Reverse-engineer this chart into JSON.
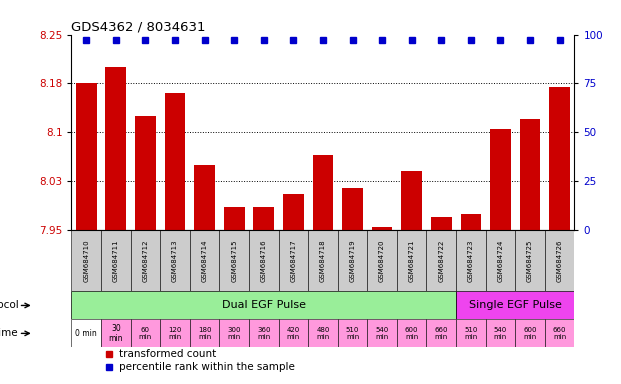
{
  "title": "GDS4362 / 8034631",
  "categories": [
    "GSM684710",
    "GSM684711",
    "GSM684712",
    "GSM684713",
    "GSM684714",
    "GSM684715",
    "GSM684716",
    "GSM684717",
    "GSM684718",
    "GSM684719",
    "GSM684720",
    "GSM684721",
    "GSM684722",
    "GSM684723",
    "GSM684724",
    "GSM684725",
    "GSM684726"
  ],
  "bar_values": [
    8.175,
    8.2,
    8.125,
    8.16,
    8.05,
    7.985,
    7.985,
    8.005,
    8.065,
    8.015,
    7.955,
    8.04,
    7.97,
    7.975,
    8.105,
    8.12,
    8.17
  ],
  "percentile_values": [
    99,
    99,
    99,
    99,
    99,
    99,
    99,
    99,
    99,
    99,
    99,
    99,
    99,
    99,
    99,
    99,
    99
  ],
  "ylim_left": [
    7.95,
    8.25
  ],
  "ylim_right": [
    0,
    100
  ],
  "yticks_left": [
    7.95,
    8.025,
    8.1,
    8.175,
    8.25
  ],
  "yticks_right": [
    0,
    25,
    50,
    75,
    100
  ],
  "bar_color": "#cc0000",
  "dot_color": "#0000cc",
  "bg_color": "#ffffff",
  "time_labels": [
    "0 min",
    "30\nmin",
    "60\nmin",
    "120\nmin",
    "180\nmin",
    "300\nmin",
    "360\nmin",
    "420\nmin",
    "480\nmin",
    "510\nmin",
    "540\nmin",
    "600\nmin",
    "660\nmin",
    "510\nmin",
    "540\nmin",
    "600\nmin",
    "660\nmin"
  ],
  "time_bg_colors": [
    "#ffffff",
    "#ff99dd",
    "#ff99dd",
    "#ff99dd",
    "#ff99dd",
    "#ff99dd",
    "#ff99dd",
    "#ff99dd",
    "#ff99dd",
    "#ff99dd",
    "#ff99dd",
    "#ff99dd",
    "#ff99dd",
    "#ff99dd",
    "#ff99dd",
    "#ff99dd",
    "#ff99dd"
  ],
  "protocol_dual_count": 13,
  "protocol_single_count": 4,
  "protocol_dual_label": "Dual EGF Pulse",
  "protocol_single_label": "Single EGF Pulse",
  "protocol_dual_color": "#99ee99",
  "protocol_single_color": "#ee44ee",
  "xticklabel_bg": "#cccccc",
  "legend_red_label": "transformed count",
  "legend_blue_label": "percentile rank within the sample"
}
